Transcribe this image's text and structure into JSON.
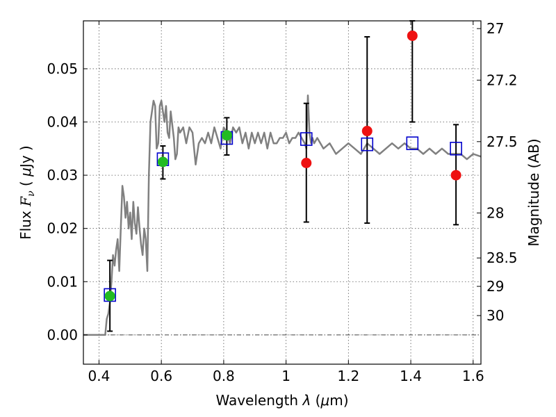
{
  "chart_data": {
    "type": "scatter",
    "title": "",
    "xlabel": "Wavelength  λ (μm)",
    "ylabel": "Flux  F_ν  ( μJy )",
    "ylabel_parts": {
      "prefix": "Flux  ",
      "symbol": "F",
      "subscript": "ν",
      "paren_open": "  ( ",
      "mu": "μ",
      "unit": "Jy",
      "paren_close": " )"
    },
    "xlabel_parts": {
      "text": "Wavelength  ",
      "lambda": "λ",
      "paren_open": " (",
      "mu": "μ",
      "unit": "m)"
    },
    "y2label": "Magnitude (AB)",
    "xlim": [
      0.35,
      1.625
    ],
    "ylim": [
      -0.0055,
      0.059
    ],
    "grid": true,
    "x_ticks": [
      0.4,
      0.6,
      0.8,
      1.0,
      1.2,
      1.4,
      1.6
    ],
    "x_tick_labels": [
      "0.4",
      "0.6",
      "0.8",
      "1",
      "1.2",
      "1.4",
      "1.6"
    ],
    "y_ticks": [
      0.0,
      0.01,
      0.02,
      0.03,
      0.04,
      0.05
    ],
    "y_tick_labels": [
      "0.00",
      "0.01",
      "0.02",
      "0.03",
      "0.04",
      "0.05"
    ],
    "y2_ticks": [
      {
        "mag": 27,
        "label": "27"
      },
      {
        "mag": 27.2,
        "label": "27.2"
      },
      {
        "mag": 27.5,
        "label": "27.5"
      },
      {
        "mag": 28,
        "label": "28"
      },
      {
        "mag": 28.5,
        "label": "28.5"
      },
      {
        "mag": 29,
        "label": "29"
      },
      {
        "mag": 30,
        "label": "30"
      }
    ],
    "series": [
      {
        "kind": "line",
        "color": "#808080",
        "x": [
          0.35,
          0.42,
          0.425,
          0.43,
          0.435,
          0.44,
          0.445,
          0.45,
          0.455,
          0.46,
          0.465,
          0.47,
          0.475,
          0.48,
          0.485,
          0.49,
          0.495,
          0.5,
          0.505,
          0.51,
          0.515,
          0.52,
          0.525,
          0.53,
          0.535,
          0.54,
          0.545,
          0.55,
          0.555,
          0.56,
          0.565,
          0.57,
          0.575,
          0.58,
          0.585,
          0.59,
          0.595,
          0.6,
          0.605,
          0.61,
          0.615,
          0.62,
          0.625,
          0.63,
          0.64,
          0.645,
          0.65,
          0.655,
          0.66,
          0.67,
          0.68,
          0.69,
          0.7,
          0.71,
          0.72,
          0.73,
          0.74,
          0.75,
          0.76,
          0.77,
          0.78,
          0.79,
          0.8,
          0.81,
          0.82,
          0.83,
          0.84,
          0.85,
          0.86,
          0.87,
          0.88,
          0.89,
          0.9,
          0.91,
          0.92,
          0.93,
          0.94,
          0.95,
          0.96,
          0.97,
          0.98,
          0.99,
          1.0,
          1.01,
          1.02,
          1.03,
          1.04,
          1.05,
          1.06,
          1.065,
          1.07,
          1.075,
          1.08,
          1.085,
          1.09,
          1.1,
          1.12,
          1.14,
          1.16,
          1.18,
          1.2,
          1.22,
          1.24,
          1.26,
          1.28,
          1.3,
          1.32,
          1.34,
          1.36,
          1.38,
          1.4,
          1.42,
          1.44,
          1.46,
          1.48,
          1.5,
          1.52,
          1.54,
          1.56,
          1.58,
          1.6,
          1.625
        ],
        "y": [
          0.0,
          0.0,
          0.003,
          0.004,
          0.006,
          0.01,
          0.015,
          0.013,
          0.016,
          0.018,
          0.012,
          0.02,
          0.028,
          0.026,
          0.022,
          0.025,
          0.02,
          0.023,
          0.018,
          0.025,
          0.021,
          0.019,
          0.024,
          0.02,
          0.017,
          0.015,
          0.02,
          0.018,
          0.012,
          0.03,
          0.04,
          0.042,
          0.044,
          0.043,
          0.035,
          0.036,
          0.043,
          0.044,
          0.042,
          0.04,
          0.043,
          0.038,
          0.037,
          0.042,
          0.037,
          0.033,
          0.034,
          0.039,
          0.038,
          0.039,
          0.036,
          0.039,
          0.038,
          0.032,
          0.036,
          0.037,
          0.036,
          0.038,
          0.036,
          0.039,
          0.037,
          0.035,
          0.039,
          0.038,
          0.036,
          0.039,
          0.038,
          0.039,
          0.036,
          0.038,
          0.035,
          0.038,
          0.036,
          0.038,
          0.036,
          0.038,
          0.035,
          0.038,
          0.036,
          0.036,
          0.037,
          0.037,
          0.038,
          0.036,
          0.037,
          0.037,
          0.038,
          0.037,
          0.036,
          0.035,
          0.045,
          0.038,
          0.036,
          0.037,
          0.036,
          0.037,
          0.035,
          0.036,
          0.034,
          0.035,
          0.036,
          0.035,
          0.034,
          0.036,
          0.035,
          0.034,
          0.035,
          0.036,
          0.035,
          0.036,
          0.035,
          0.035,
          0.034,
          0.035,
          0.034,
          0.035,
          0.034,
          0.034,
          0.034,
          0.033,
          0.034,
          0.0335
        ]
      },
      {
        "kind": "squares",
        "color": "#0000cc",
        "x": [
          0.435,
          0.605,
          0.81,
          1.065,
          1.26,
          1.405,
          1.545
        ],
        "y": [
          0.0075,
          0.033,
          0.037,
          0.0368,
          0.0358,
          0.036,
          0.035
        ]
      },
      {
        "kind": "points",
        "color": "#22bb22",
        "x": [
          0.435,
          0.605,
          0.81
        ],
        "y": [
          0.0073,
          0.0325,
          0.0375
        ]
      },
      {
        "kind": "points",
        "color": "#ee1111",
        "x": [
          1.065,
          1.26,
          1.405,
          1.545
        ],
        "y": [
          0.0323,
          0.0383,
          0.0562,
          0.03
        ]
      }
    ],
    "error_bars": [
      {
        "x": 0.435,
        "y_low": 0.0007,
        "y_high": 0.014
      },
      {
        "x": 0.605,
        "y_low": 0.0293,
        "y_high": 0.0355
      },
      {
        "x": 0.81,
        "y_low": 0.0338,
        "y_high": 0.0408
      },
      {
        "x": 1.065,
        "y_low": 0.0212,
        "y_high": 0.0435
      },
      {
        "x": 1.26,
        "y_low": 0.021,
        "y_high": 0.056
      },
      {
        "x": 1.405,
        "y_low": 0.04,
        "y_high": 0.059
      },
      {
        "x": 1.545,
        "y_low": 0.0207,
        "y_high": 0.0395
      }
    ]
  }
}
